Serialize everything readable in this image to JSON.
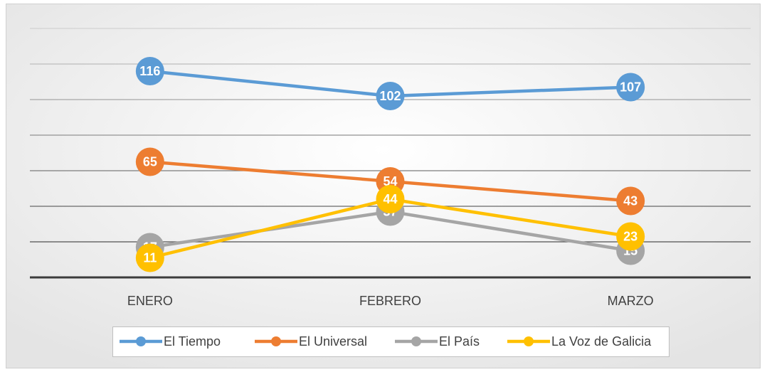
{
  "chart_data": {
    "type": "line",
    "categories": [
      "ENERO",
      "FEBRERO",
      "MARZO"
    ],
    "series": [
      {
        "name": "El Tiempo",
        "color": "#5b9bd5",
        "values": [
          116,
          102,
          107
        ]
      },
      {
        "name": "El Universal",
        "color": "#ed7d31",
        "values": [
          65,
          54,
          43
        ]
      },
      {
        "name": "El País",
        "color": "#a5a5a5",
        "values": [
          17,
          37,
          15
        ]
      },
      {
        "name": "La Voz de Galicia",
        "color": "#ffc000",
        "values": [
          11,
          44,
          23
        ]
      }
    ],
    "ylim": [
      0,
      140
    ],
    "yticks": [
      0,
      20,
      40,
      60,
      80,
      100,
      120,
      140
    ],
    "grid": true,
    "legend": "bottom"
  }
}
